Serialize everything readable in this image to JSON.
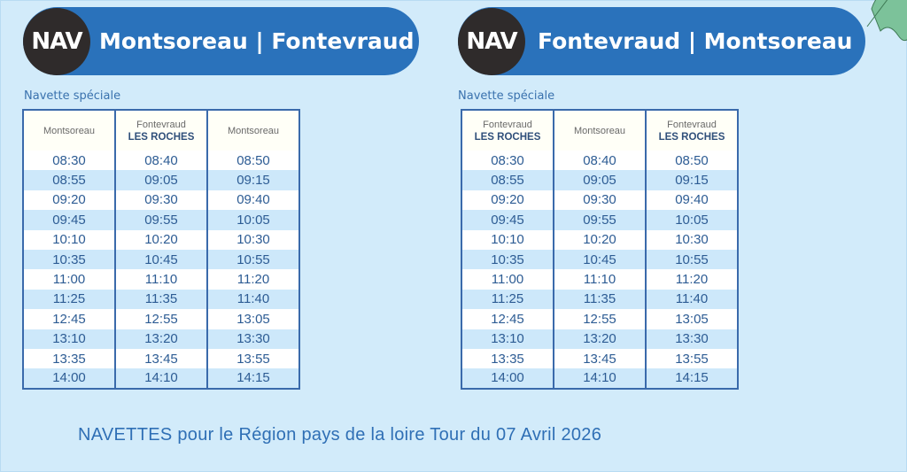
{
  "left": {
    "badge": "NAV",
    "title": "Montsoreau | Fontevraud",
    "subtitle": "Navette spéciale",
    "headers": [
      {
        "line1": "Montsoreau",
        "line2": ""
      },
      {
        "line1": "Fontevraud",
        "line2": "LES ROCHES"
      },
      {
        "line1": "Montsoreau",
        "line2": ""
      }
    ],
    "rows": [
      [
        "08:30",
        "08:40",
        "08:50"
      ],
      [
        "08:55",
        "09:05",
        "09:15"
      ],
      [
        "09:20",
        "09:30",
        "09:40"
      ],
      [
        "09:45",
        "09:55",
        "10:05"
      ],
      [
        "10:10",
        "10:20",
        "10:30"
      ],
      [
        "10:35",
        "10:45",
        "10:55"
      ],
      [
        "11:00",
        "11:10",
        "11:20"
      ],
      [
        "11:25",
        "11:35",
        "11:40"
      ],
      [
        "12:45",
        "12:55",
        "13:05"
      ],
      [
        "13:10",
        "13:20",
        "13:30"
      ],
      [
        "13:35",
        "13:45",
        "13:55"
      ],
      [
        "14:00",
        "14:10",
        "14:15"
      ]
    ]
  },
  "right": {
    "badge": "NAV",
    "title": "Fontevraud | Montsoreau",
    "subtitle": "Navette spéciale",
    "headers": [
      {
        "line1": "Fontevraud",
        "line2": "LES ROCHES"
      },
      {
        "line1": "Montsoreau",
        "line2": ""
      },
      {
        "line1": "Fontevraud",
        "line2": "LES ROCHES"
      }
    ],
    "rows": [
      [
        "08:30",
        "08:40",
        "08:50"
      ],
      [
        "08:55",
        "09:05",
        "09:15"
      ],
      [
        "09:20",
        "09:30",
        "09:40"
      ],
      [
        "09:45",
        "09:55",
        "10:05"
      ],
      [
        "10:10",
        "10:20",
        "10:30"
      ],
      [
        "10:35",
        "10:45",
        "10:55"
      ],
      [
        "11:00",
        "11:10",
        "11:20"
      ],
      [
        "11:25",
        "11:35",
        "11:40"
      ],
      [
        "12:45",
        "12:55",
        "13:05"
      ],
      [
        "13:10",
        "13:20",
        "13:30"
      ],
      [
        "13:35",
        "13:45",
        "13:55"
      ],
      [
        "14:00",
        "14:10",
        "14:15"
      ]
    ]
  },
  "footer": "NAVETTES pour le Région pays de la loire Tour du 07 Avril 2026",
  "colors": {
    "banner": "#2a72bb",
    "badge": "#2f2b2b",
    "background": "#d2ebfa",
    "leaf": "#7cc29a"
  },
  "icons": {
    "decoration": "leaf-icon"
  }
}
